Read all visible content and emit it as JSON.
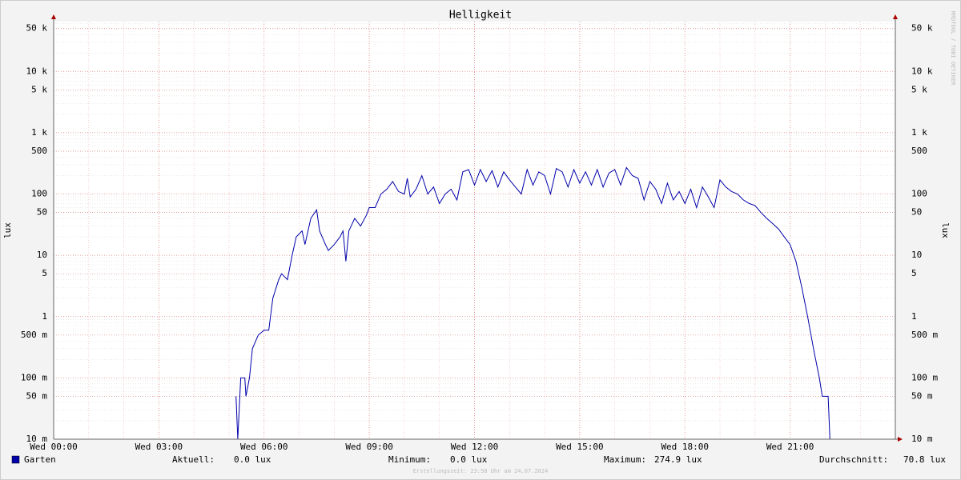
{
  "chart_data": {
    "type": "line",
    "title": "Helligkeit",
    "y_label": "lux",
    "y2_label": "lux",
    "watermark": "RRDTOOL / TOBI OETIKER",
    "log_scale": true,
    "grid": true,
    "xlim": [
      "Wed 00:00",
      "Wed 24:00"
    ],
    "xticks": [
      "Wed 00:00",
      "Wed 03:00",
      "Wed 06:00",
      "Wed 09:00",
      "Wed 12:00",
      "Wed 15:00",
      "Wed 18:00",
      "Wed 21:00"
    ],
    "ylim": [
      0.01,
      65000
    ],
    "yticks": [
      {
        "value": 0.01,
        "label": "10 m"
      },
      {
        "value": 0.05,
        "label": "50 m"
      },
      {
        "value": 0.1,
        "label": "100 m"
      },
      {
        "value": 0.5,
        "label": "500 m"
      },
      1,
      5,
      10,
      50,
      100,
      500,
      {
        "value": 1000,
        "label": "1 k"
      },
      {
        "value": 5000,
        "label": "5 k"
      },
      {
        "value": 10000,
        "label": "10 k"
      },
      {
        "value": 50000,
        "label": "50 k"
      }
    ],
    "x": [
      "Wed 05:12",
      "Wed 05:15",
      "Wed 05:20",
      "Wed 05:27",
      "Wed 05:29",
      "Wed 05:35",
      "Wed 05:40",
      "Wed 05:50",
      "Wed 06:00",
      "Wed 06:08",
      "Wed 06:15",
      "Wed 06:25",
      "Wed 06:30",
      "Wed 06:40",
      "Wed 06:48",
      "Wed 06:55",
      "Wed 07:05",
      "Wed 07:10",
      "Wed 07:20",
      "Wed 07:30",
      "Wed 07:35",
      "Wed 07:45",
      "Wed 07:50",
      "Wed 08:00",
      "Wed 08:10",
      "Wed 08:15",
      "Wed 08:20",
      "Wed 08:25",
      "Wed 08:35",
      "Wed 08:45",
      "Wed 08:55",
      "Wed 09:00",
      "Wed 09:10",
      "Wed 09:20",
      "Wed 09:30",
      "Wed 09:40",
      "Wed 09:50",
      "Wed 10:00",
      "Wed 10:05",
      "Wed 10:10",
      "Wed 10:20",
      "Wed 10:30",
      "Wed 10:40",
      "Wed 10:50",
      "Wed 11:00",
      "Wed 11:10",
      "Wed 11:20",
      "Wed 11:30",
      "Wed 11:40",
      "Wed 11:50",
      "Wed 12:00",
      "Wed 12:10",
      "Wed 12:20",
      "Wed 12:30",
      "Wed 12:40",
      "Wed 12:50",
      "Wed 13:00",
      "Wed 13:10",
      "Wed 13:20",
      "Wed 13:30",
      "Wed 13:40",
      "Wed 13:50",
      "Wed 14:00",
      "Wed 14:10",
      "Wed 14:20",
      "Wed 14:30",
      "Wed 14:40",
      "Wed 14:50",
      "Wed 15:00",
      "Wed 15:10",
      "Wed 15:20",
      "Wed 15:30",
      "Wed 15:40",
      "Wed 15:50",
      "Wed 16:00",
      "Wed 16:10",
      "Wed 16:20",
      "Wed 16:30",
      "Wed 16:40",
      "Wed 16:50",
      "Wed 17:00",
      "Wed 17:10",
      "Wed 17:20",
      "Wed 17:30",
      "Wed 17:40",
      "Wed 17:50",
      "Wed 18:00",
      "Wed 18:10",
      "Wed 18:20",
      "Wed 18:30",
      "Wed 18:40",
      "Wed 18:50",
      "Wed 19:00",
      "Wed 19:10",
      "Wed 19:20",
      "Wed 19:30",
      "Wed 19:40",
      "Wed 19:50",
      "Wed 20:00",
      "Wed 20:10",
      "Wed 20:20",
      "Wed 20:30",
      "Wed 20:40",
      "Wed 20:50",
      "Wed 21:00",
      "Wed 21:10",
      "Wed 21:20",
      "Wed 21:30",
      "Wed 21:40",
      "Wed 21:50",
      "Wed 21:55",
      "Wed 22:05",
      "Wed 22:08"
    ],
    "series": [
      {
        "name": "Garten",
        "color": "#0000aa",
        "values": [
          0.05,
          0.01,
          0.1,
          0.1,
          0.05,
          0.1,
          0.3,
          0.5,
          0.6,
          0.6,
          2,
          4,
          5,
          4,
          10,
          20,
          25,
          15,
          40,
          55,
          25,
          15,
          12,
          15,
          20,
          25,
          8,
          25,
          40,
          30,
          45,
          60,
          60,
          100,
          120,
          160,
          110,
          100,
          180,
          90,
          120,
          200,
          100,
          130,
          70,
          100,
          120,
          80,
          230,
          250,
          140,
          250,
          160,
          240,
          130,
          230,
          170,
          130,
          100,
          250,
          140,
          230,
          200,
          100,
          260,
          230,
          130,
          250,
          150,
          230,
          140,
          250,
          130,
          220,
          250,
          140,
          270,
          200,
          180,
          80,
          160,
          120,
          70,
          150,
          80,
          110,
          70,
          120,
          60,
          130,
          90,
          60,
          170,
          130,
          110,
          100,
          80,
          70,
          65,
          50,
          40,
          33,
          27,
          20,
          15,
          8,
          3,
          1,
          0.3,
          0.1,
          0.05,
          0.05,
          0.01
        ]
      }
    ],
    "legend": {
      "stats": [
        {
          "label": "Aktuell:",
          "value": "0.0 lux"
        },
        {
          "label": "Minimum:",
          "value": "0.0 lux"
        },
        {
          "label": "Maximum:",
          "value": "274.9 lux"
        },
        {
          "label": "Durchschnitt:",
          "value": "70.8 lux"
        }
      ]
    },
    "footer": "Erstellungszeit: 23:58 Uhr am 24.07.2024"
  }
}
